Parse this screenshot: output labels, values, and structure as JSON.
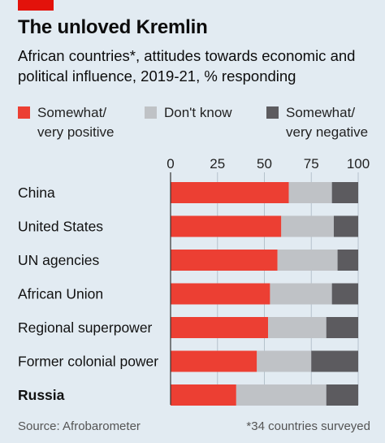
{
  "header": {
    "title": "The unloved Kremlin",
    "subtitle": "African countries*, attitudes towards economic and political influence, 2019-21, % responding"
  },
  "legend": [
    {
      "label": "Somewhat/ very positive",
      "color": "#ec3f33"
    },
    {
      "label": "Don't know",
      "color": "#bfc2c6"
    },
    {
      "label": "Somewhat/ very negative",
      "color": "#5c5b5f"
    }
  ],
  "footer": {
    "source": "Source: Afrobarometer",
    "note": "*34 countries surveyed"
  },
  "chart_data": {
    "type": "bar",
    "orientation": "horizontal",
    "stacked": true,
    "xlim": [
      0,
      100
    ],
    "xticks": [
      0,
      25,
      50,
      75,
      100
    ],
    "categories": [
      "China",
      "United States",
      "UN agencies",
      "African Union",
      "Regional superpower",
      "Former colonial power",
      "Russia"
    ],
    "highlight_category": "Russia",
    "series": [
      {
        "name": "Somewhat/ very positive",
        "color": "#ec3f33",
        "values": [
          63,
          59,
          57,
          53,
          52,
          46,
          35
        ]
      },
      {
        "name": "Don't know",
        "color": "#bfc2c6",
        "values": [
          23,
          28,
          32,
          33,
          31,
          29,
          48
        ]
      },
      {
        "name": "Somewhat/ very negative",
        "color": "#5c5b5f",
        "values": [
          14,
          13,
          11,
          14,
          17,
          25,
          17
        ]
      }
    ],
    "grid": true
  }
}
